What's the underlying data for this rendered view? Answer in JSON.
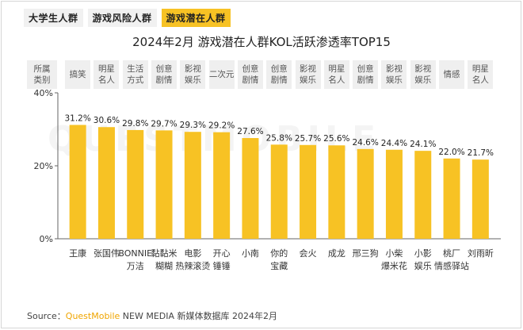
{
  "tabs": [
    {
      "label": "大学生人群",
      "active": false
    },
    {
      "label": "游戏风险人群",
      "active": false
    },
    {
      "label": "游戏潜在人群",
      "active": true
    }
  ],
  "title": "2024年2月 游戏潜在人群KOL活跃渗透率TOP15",
  "category_header": [
    "所属",
    "类别"
  ],
  "source": {
    "prefix": "Source：",
    "brand": "QuestMobile",
    "rest": " NEW MEDIA 新媒体数据库 2024年2月"
  },
  "watermark": "QUESTMOBILE",
  "colors": {
    "bar": "#f7c224",
    "accent": "#f7c224",
    "tab_bg": "#f1f1f1"
  },
  "chart_data": {
    "type": "bar",
    "title": "2024年2月 游戏潜在人群KOL活跃渗透率TOP15",
    "ylim": [
      0,
      40
    ],
    "yticks": [
      "0%",
      "20%",
      "40%"
    ],
    "grid": false,
    "categories": [
      {
        "name": [
          "王康"
        ],
        "type": [
          "搞笑"
        ],
        "value": 31.2,
        "label": "31.2%"
      },
      {
        "name": [
          "张国伟"
        ],
        "type": [
          "明星",
          "名人"
        ],
        "value": 30.6,
        "label": "30.6%"
      },
      {
        "name": [
          "BONNIE",
          "万洁"
        ],
        "type": [
          "生活",
          "方式"
        ],
        "value": 29.8,
        "label": "29.8%"
      },
      {
        "name": [
          "黏黏米",
          "糊糊"
        ],
        "type": [
          "创意",
          "剧情"
        ],
        "value": 29.7,
        "label": "29.7%"
      },
      {
        "name": [
          "电影",
          "热辣滚烫"
        ],
        "type": [
          "影视",
          "娱乐"
        ],
        "value": 29.3,
        "label": "29.3%"
      },
      {
        "name": [
          "开心",
          "锤锤"
        ],
        "type": [
          "二次元"
        ],
        "value": 29.2,
        "label": "29.2%"
      },
      {
        "name": [
          "小南"
        ],
        "type": [
          "创意",
          "剧情"
        ],
        "value": 27.6,
        "label": "27.6%"
      },
      {
        "name": [
          "你的",
          "宝藏"
        ],
        "type": [
          "创意",
          "剧情"
        ],
        "value": 25.8,
        "label": "25.8%"
      },
      {
        "name": [
          "会火"
        ],
        "type": [
          "影视",
          "娱乐"
        ],
        "value": 25.7,
        "label": "25.7%"
      },
      {
        "name": [
          "成龙"
        ],
        "type": [
          "明星",
          "名人"
        ],
        "value": 25.6,
        "label": "25.6%"
      },
      {
        "name": [
          "邢三狗"
        ],
        "type": [
          "创意",
          "剧情"
        ],
        "value": 24.6,
        "label": "24.6%"
      },
      {
        "name": [
          "小柴",
          "爆米花"
        ],
        "type": [
          "影视",
          "娱乐"
        ],
        "value": 24.4,
        "label": "24.4%"
      },
      {
        "name": [
          "小影",
          "娱乐"
        ],
        "type": [
          "影视",
          "娱乐"
        ],
        "value": 24.1,
        "label": "24.1%"
      },
      {
        "name": [
          "桃厂",
          "情感驿站"
        ],
        "type": [
          "情感"
        ],
        "value": 22.0,
        "label": "22.0%"
      },
      {
        "name": [
          "刘雨昕"
        ],
        "type": [
          "明星",
          "名人"
        ],
        "value": 21.7,
        "label": "21.7%"
      }
    ]
  }
}
